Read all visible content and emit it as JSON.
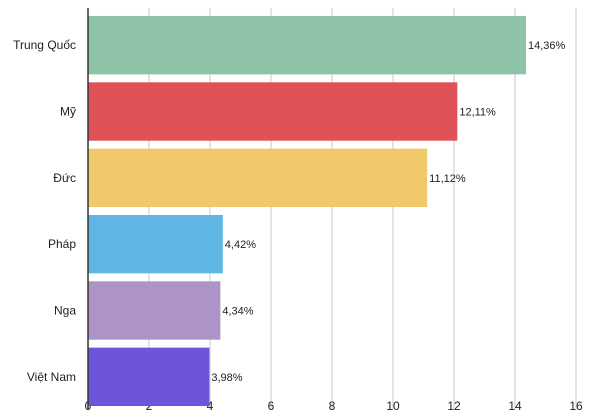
{
  "chart_data": {
    "type": "bar",
    "orientation": "horizontal",
    "title": "",
    "xlabel": "",
    "ylabel": "",
    "categories": [
      "Trung Quốc",
      "Mỹ",
      "Đức",
      "Pháp",
      "Nga",
      "Việt Nam"
    ],
    "values": [
      14.36,
      12.11,
      11.12,
      4.42,
      4.34,
      3.98
    ],
    "value_labels": [
      "14,36%",
      "12,11%",
      "11,12%",
      "4,42%",
      "4,34%",
      "3,98%"
    ],
    "colors": [
      "#8ec3a8",
      "#df5356",
      "#f0c96a",
      "#5fb6e5",
      "#ac93c8",
      "#6e54d8"
    ],
    "xlim": [
      0,
      16
    ],
    "xticks": [
      0,
      2,
      4,
      6,
      8,
      10,
      12,
      14,
      16
    ],
    "grid": true,
    "legend": "none"
  }
}
